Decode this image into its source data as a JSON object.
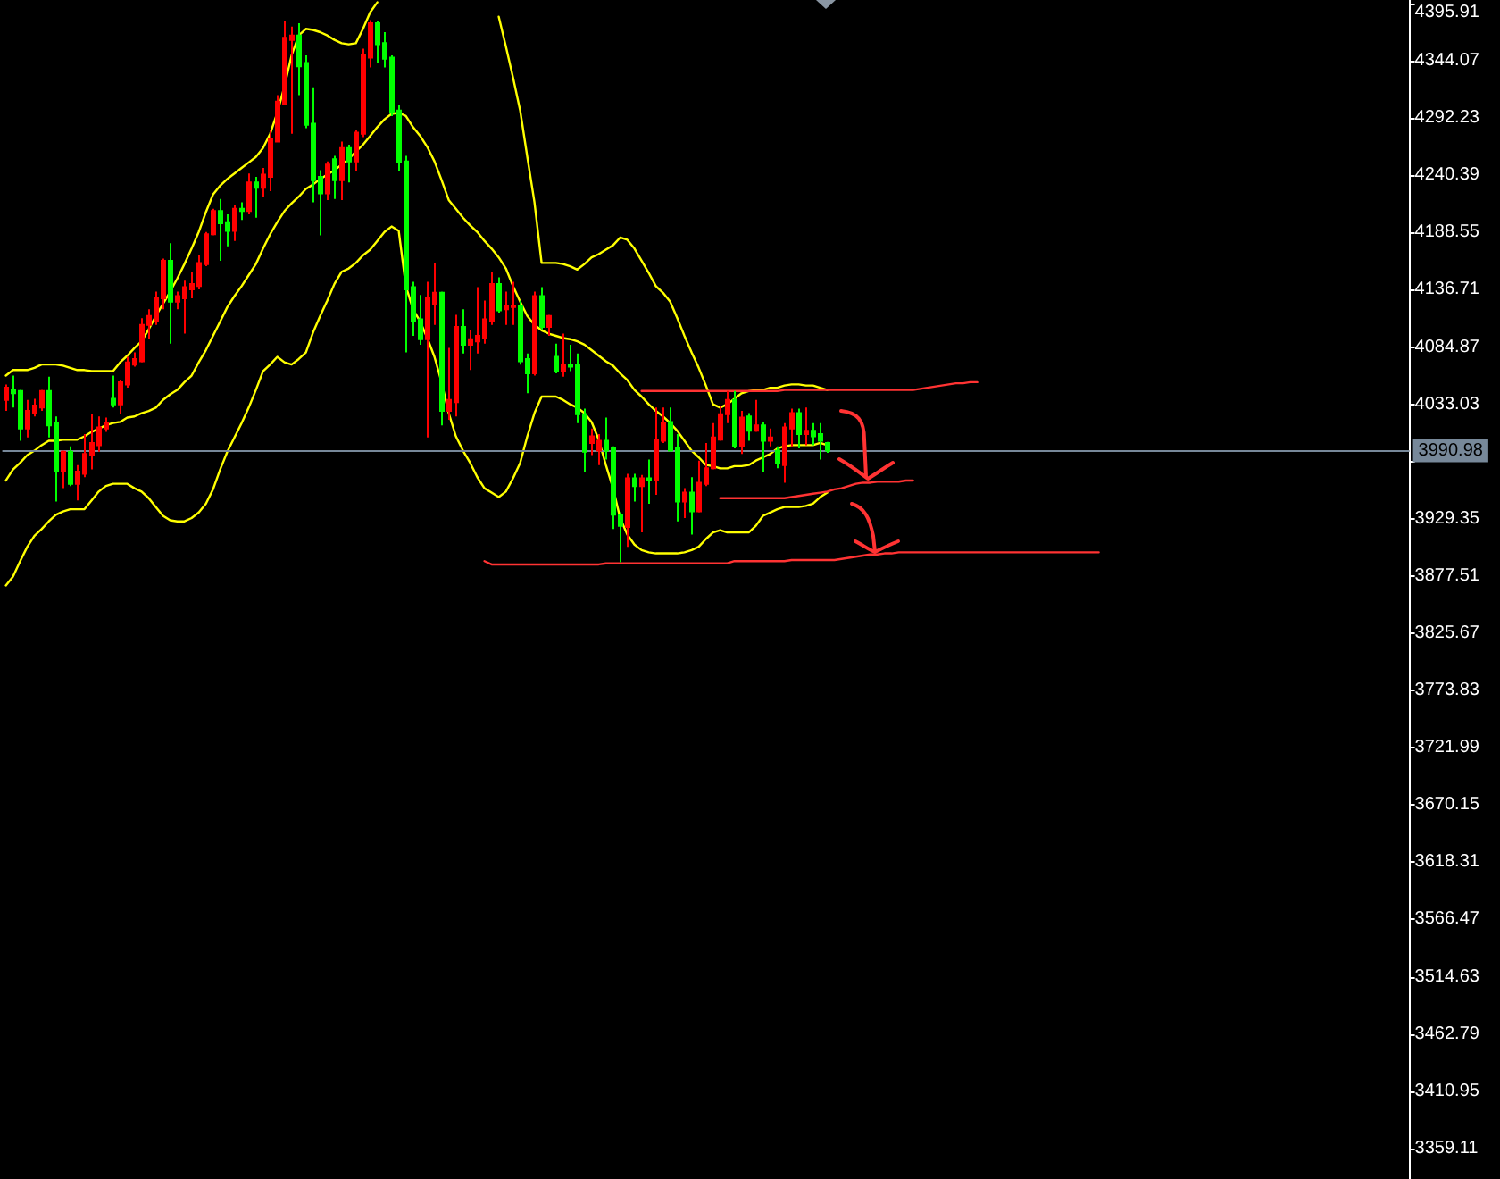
{
  "chart_data": {
    "type": "candlestick",
    "categories": [
      null,
      null,
      null,
      null,
      null,
      null,
      null,
      null,
      null,
      null,
      null,
      null,
      null,
      null,
      null,
      null,
      null,
      null,
      null,
      null,
      null,
      null,
      null,
      null,
      null,
      null,
      null,
      null,
      null,
      null,
      null,
      null,
      null,
      null,
      null,
      null,
      null,
      null,
      null,
      null,
      null,
      null,
      null,
      null,
      null,
      null,
      null,
      null,
      null,
      null,
      null,
      null,
      null,
      null,
      null,
      null,
      null,
      null,
      null,
      null,
      null,
      null,
      null,
      null,
      null,
      null,
      null,
      null,
      null,
      null,
      null,
      null,
      null,
      null,
      null,
      null,
      null,
      null,
      null,
      null,
      null,
      null,
      null,
      null,
      null,
      null,
      null,
      null,
      null,
      null,
      null,
      null,
      null,
      null,
      null,
      null,
      null,
      null,
      null,
      null,
      null,
      null,
      null,
      null,
      null,
      null,
      null,
      null,
      null,
      null,
      null,
      null,
      null,
      null,
      null,
      null,
      null,
      null,
      null,
      null,
      null,
      null,
      null,
      null,
      null,
      null,
      null,
      null,
      null,
      null,
      null,
      null,
      null,
      null,
      null,
      null,
      null,
      null,
      null,
      null,
      null,
      null,
      null,
      null,
      null,
      null,
      null,
      null,
      null,
      null,
      null,
      null,
      null,
      null,
      null,
      null,
      null,
      null,
      null,
      null,
      null,
      null,
      null,
      null,
      null,
      null,
      null,
      null,
      null,
      null,
      null,
      null,
      null,
      null,
      null,
      null,
      null,
      null,
      null,
      null,
      null,
      null,
      null,
      null,
      null,
      null,
      null,
      null,
      null,
      null,
      null,
      null,
      null,
      null,
      null,
      null,
      null
    ],
    "ohlc": [
      [
        4037,
        4051,
        4027,
        4048
      ],
      [
        4046,
        4059,
        4030,
        4043
      ],
      [
        4045,
        4046,
        4000,
        4011
      ],
      [
        4011,
        4037,
        4003,
        4027
      ],
      [
        4025,
        4038,
        4022,
        4032
      ],
      [
        4030,
        4046,
        4027,
        4045
      ],
      [
        4045,
        4058,
        4003,
        4014
      ],
      [
        4016,
        4022,
        3945,
        3972
      ],
      [
        3972,
        3991,
        3957,
        3990
      ],
      [
        3990,
        3995,
        3959,
        3961
      ],
      [
        3961,
        3978,
        3946,
        3972
      ],
      [
        3970,
        4006,
        3967,
        3988
      ],
      [
        3987,
        4024,
        3974,
        3998
      ],
      [
        3996,
        4022,
        3990,
        4012
      ],
      [
        4011,
        4021,
        4008,
        4016
      ],
      [
        4038,
        4059,
        4030,
        4033
      ],
      [
        4033,
        4055,
        4024,
        4053
      ],
      [
        4051,
        4076,
        4048,
        4071
      ],
      [
        4069,
        4080,
        4067,
        4074
      ],
      [
        4072,
        4111,
        4071,
        4105
      ],
      [
        4105,
        4119,
        4092,
        4113
      ],
      [
        4108,
        4135,
        4105,
        4129
      ],
      [
        4129,
        4165,
        4119,
        4163
      ],
      [
        4163,
        4179,
        4088,
        4126
      ],
      [
        4126,
        4135,
        4119,
        4131
      ],
      [
        4129,
        4145,
        4097,
        4139
      ],
      [
        4137,
        4153,
        4129,
        4142
      ],
      [
        4140,
        4168,
        4137,
        4161
      ],
      [
        4160,
        4189,
        4158,
        4187
      ],
      [
        4187,
        4210,
        4186,
        4208
      ],
      [
        4208,
        4219,
        4163,
        4197
      ],
      [
        4198,
        4205,
        4176,
        4190
      ],
      [
        4190,
        4213,
        4181,
        4210
      ],
      [
        4210,
        4216,
        4200,
        4208
      ],
      [
        4208,
        4242,
        4205,
        4234
      ],
      [
        4234,
        4239,
        4202,
        4229
      ],
      [
        4229,
        4247,
        4221,
        4241
      ],
      [
        4239,
        4281,
        4226,
        4273
      ],
      [
        4271,
        4313,
        4270,
        4307
      ],
      [
        4305,
        4380,
        4304,
        4365
      ],
      [
        4363,
        4375,
        4278,
        4367
      ],
      [
        4367,
        4378,
        4313,
        4339
      ],
      [
        4342,
        4349,
        4283,
        4286
      ],
      [
        4287,
        4320,
        4216,
        4236
      ],
      [
        4239,
        4245,
        4186,
        4224
      ],
      [
        4224,
        4253,
        4218,
        4250
      ],
      [
        4255,
        4258,
        4219,
        4236
      ],
      [
        4236,
        4271,
        4218,
        4265
      ],
      [
        4265,
        4268,
        4234,
        4253
      ],
      [
        4253,
        4281,
        4244,
        4279
      ],
      [
        4278,
        4355,
        4275,
        4349
      ],
      [
        4347,
        4381,
        4338,
        4378
      ],
      [
        4378,
        4380,
        4342,
        4359
      ],
      [
        4360,
        4370,
        4338,
        4346
      ],
      [
        4347,
        4349,
        4294,
        4297
      ],
      [
        4299,
        4304,
        4244,
        4252
      ],
      [
        4253,
        4258,
        4080,
        4137
      ],
      [
        4139,
        4144,
        4095,
        4108
      ],
      [
        4110,
        4132,
        4087,
        4092
      ],
      [
        4092,
        4144,
        4003,
        4129
      ],
      [
        4124,
        4161,
        4105,
        4134
      ],
      [
        4134,
        4135,
        4014,
        4027
      ],
      [
        4027,
        4084,
        4019,
        4037
      ],
      [
        4035,
        4114,
        4022,
        4103
      ],
      [
        4103,
        4119,
        4079,
        4087
      ],
      [
        4087,
        4100,
        4064,
        4092
      ],
      [
        4090,
        4139,
        4079,
        4095
      ],
      [
        4093,
        4127,
        4088,
        4110
      ],
      [
        4108,
        4153,
        4105,
        4142
      ],
      [
        4142,
        4148,
        4116,
        4118
      ],
      [
        4119,
        4135,
        4105,
        4122
      ],
      [
        4121,
        4144,
        4105,
        4122
      ],
      [
        4122,
        4127,
        4069,
        4072
      ],
      [
        4074,
        4079,
        4043,
        4061
      ],
      [
        4061,
        4135,
        4059,
        4131
      ],
      [
        4131,
        4139,
        4100,
        4103
      ],
      [
        4103,
        4114,
        4095,
        4113
      ],
      [
        4076,
        4088,
        4061,
        4063
      ],
      [
        4063,
        4097,
        4058,
        4069
      ],
      [
        4069,
        4087,
        4063,
        4067
      ],
      [
        4069,
        4079,
        4016,
        4024
      ],
      [
        4024,
        4029,
        3972,
        3990
      ],
      [
        3998,
        4011,
        3987,
        4004
      ],
      [
        3991,
        4006,
        3978,
        4000
      ],
      [
        4000,
        4021,
        3983,
        3991
      ],
      [
        3993,
        3995,
        3920,
        3933
      ],
      [
        3933,
        3935,
        3890,
        3923
      ],
      [
        3922,
        3970,
        3904,
        3966
      ],
      [
        3966,
        3970,
        3945,
        3959
      ],
      [
        3959,
        3969,
        3917,
        3966
      ],
      [
        3966,
        3983,
        3943,
        3964
      ],
      [
        3964,
        4030,
        3951,
        4001
      ],
      [
        4000,
        4030,
        3998,
        4016
      ],
      [
        4017,
        4030,
        3990,
        3991
      ],
      [
        3993,
        4006,
        3927,
        3945
      ],
      [
        3945,
        3957,
        3930,
        3953
      ],
      [
        3953,
        3967,
        3915,
        3936
      ],
      [
        3936,
        3982,
        3935,
        3962
      ],
      [
        3961,
        3998,
        3959,
        3975
      ],
      [
        3975,
        4016,
        3974,
        4003
      ],
      [
        4001,
        4032,
        4000,
        4024
      ],
      [
        4024,
        4045,
        4016,
        4037
      ],
      [
        4037,
        4045,
        3993,
        3995
      ],
      [
        3995,
        4027,
        3988,
        4021
      ],
      [
        4022,
        4025,
        4000,
        4009
      ],
      [
        4009,
        4037,
        4008,
        4014
      ],
      [
        4014,
        4017,
        3972,
        4000
      ],
      [
        4000,
        4011,
        3995,
        4003
      ],
      [
        3991,
        3995,
        3975,
        3980
      ],
      [
        3978,
        4016,
        3962,
        4012
      ],
      [
        4011,
        4029,
        3995,
        4025
      ],
      [
        4025,
        4029,
        3993,
        4006
      ],
      [
        4006,
        4030,
        3996,
        4009
      ],
      [
        4009,
        4016,
        3996,
        4004
      ],
      [
        4006,
        4016,
        3983,
        4000
      ],
      [
        3998,
        3999,
        3989,
        3990.98
      ],
      null,
      null,
      null,
      null,
      null,
      null,
      null,
      null,
      null,
      null,
      null,
      null,
      null,
      null,
      null,
      null,
      null,
      null,
      null,
      null,
      null,
      null,
      null,
      null,
      null,
      null,
      null,
      null,
      null,
      null,
      null,
      null,
      null,
      null,
      null,
      null,
      null,
      null,
      null,
      null,
      null,
      null,
      null,
      null,
      null,
      null,
      null,
      null,
      null,
      null,
      null,
      null,
      null,
      null,
      null,
      null,
      null,
      null,
      null,
      null,
      null,
      null,
      null,
      null,
      null,
      null,
      null,
      null,
      null,
      null,
      null,
      null,
      null,
      null,
      null,
      null,
      null,
      null,
      null,
      null,
      null
    ],
    "colors": [
      "#ff0000",
      "#00ff00",
      "#00ff00",
      "#ff0000",
      "#ff0000",
      "#ff0000",
      "#00ff00",
      "#00ff00",
      "#ff0000",
      "#00ff00",
      "#ff0000",
      "#ff0000",
      "#ff0000",
      "#ff0000",
      "#ff0000",
      "#00ff00",
      "#ff0000",
      "#ff0000",
      "#ff0000",
      "#ff0000",
      "#ff0000",
      "#ff0000",
      "#ff0000",
      "#00ff00",
      "#ff0000",
      "#ff0000",
      "#ff0000",
      "#ff0000",
      "#ff0000",
      "#ff0000",
      "#00ff00",
      "#00ff00",
      "#ff0000",
      "#00ff00",
      "#ff0000",
      "#00ff00",
      "#ff0000",
      "#ff0000",
      "#ff0000",
      "#ff0000",
      "#ff0000",
      "#00ff00",
      "#00ff00",
      "#00ff00",
      "#00ff00",
      "#ff0000",
      "#00ff00",
      "#ff0000",
      "#00ff00",
      "#ff0000",
      "#ff0000",
      "#ff0000",
      "#00ff00",
      "#00ff00",
      "#00ff00",
      "#00ff00",
      "#00ff00",
      "#00ff00",
      "#00ff00",
      "#ff0000",
      "#ff0000",
      "#00ff00",
      "#ff0000",
      "#ff0000",
      "#00ff00",
      "#ff0000",
      "#ff0000",
      "#ff0000",
      "#ff0000",
      "#00ff00",
      "#ff0000",
      "#ff0000",
      "#00ff00",
      "#00ff00",
      "#ff0000",
      "#00ff00",
      "#ff0000",
      "#00ff00",
      "#ff0000",
      "#00ff00",
      "#00ff00",
      "#00ff00",
      "#ff0000",
      "#ff0000",
      "#00ff00",
      "#00ff00",
      "#00ff00",
      "#ff0000",
      "#00ff00",
      "#ff0000",
      "#00ff00",
      "#ff0000",
      "#ff0000",
      "#00ff00",
      "#00ff00",
      "#ff0000",
      "#00ff00",
      "#ff0000",
      "#ff0000",
      "#ff0000",
      "#ff0000",
      "#ff0000",
      "#00ff00",
      "#ff0000",
      "#00ff00",
      "#ff0000",
      "#00ff00",
      "#ff0000",
      "#00ff00",
      "#ff0000",
      "#ff0000",
      "#00ff00",
      "#ff0000",
      "#00ff00",
      "#00ff00",
      "#00ff00",
      null,
      null,
      null,
      null,
      null,
      null,
      null,
      null,
      null,
      null,
      null,
      null,
      null,
      null,
      null,
      null,
      null,
      null,
      null,
      null,
      null,
      null,
      null,
      null,
      null,
      null,
      null,
      null,
      null,
      null,
      null,
      null,
      null,
      null,
      null,
      null,
      null,
      null,
      null,
      null,
      null,
      null,
      null,
      null,
      null,
      null,
      null,
      null,
      null,
      null,
      null,
      null,
      null,
      null,
      null,
      null,
      null,
      null,
      null,
      null,
      null,
      null,
      null,
      null,
      null,
      null,
      null,
      null,
      null,
      null,
      null,
      null,
      null,
      null,
      null,
      null,
      null,
      null,
      null,
      null,
      null
    ],
    "series": [
      {
        "type": "line",
        "color": "#ffff00",
        "values": [
          4059,
          4064,
          4064,
          4064,
          4066,
          4069,
          4069,
          4069,
          4068,
          4066,
          4064,
          4064,
          4063,
          4063,
          4063,
          4063,
          4071,
          4077,
          4084,
          4090,
          4101,
          4113,
          4124,
          4135,
          4147,
          4160,
          4174,
          4189,
          4207,
          4223,
          4231,
          4237,
          4242,
          4247,
          4252,
          4257,
          4265,
          4278,
          4297,
          4321,
          4349,
          4367,
          4373,
          4372,
          4370,
          4367,
          4363,
          4360,
          4359,
          4360,
          4373,
          4388,
          4397,
          null,
          null,
          null,
          null,
          null,
          null,
          null,
          null,
          null,
          null,
          null,
          null,
          null,
          null,
          null,
          null,
          4384,
          4357,
          4329,
          4299,
          4257,
          4216,
          4161,
          4161,
          4161,
          4160,
          4158,
          4155,
          4160,
          4166,
          4169,
          4173,
          4177,
          4184,
          4182,
          4174,
          4163,
          4152,
          4140,
          4134,
          4126,
          4111,
          4095,
          4080,
          4066,
          4050,
          4033,
          4030,
          4033,
          4038,
          4043,
          4045,
          4046,
          4046,
          4048,
          4048,
          4050,
          4051,
          4051,
          4050,
          4050,
          4048,
          4046,
          null,
          null,
          null,
          null,
          null,
          null,
          null,
          null,
          null,
          null,
          null,
          null,
          null,
          null,
          null,
          null,
          null,
          null,
          null,
          null,
          null,
          null,
          null,
          null,
          null,
          null,
          null,
          null,
          null,
          null,
          null,
          null,
          null,
          null,
          null,
          null,
          null,
          null,
          null,
          null,
          null,
          null,
          null,
          null,
          null,
          null,
          null,
          null,
          null,
          null,
          null,
          null,
          null,
          null,
          null,
          null,
          null,
          null,
          null,
          null,
          null,
          null,
          null,
          null,
          null,
          null,
          null,
          null,
          null,
          null,
          null,
          null,
          null,
          null,
          null,
          null,
          null,
          null,
          null,
          null,
          null
        ]
      },
      {
        "type": "line",
        "color": "#ffff00",
        "values": [
          3964,
          3974,
          3980,
          3987,
          3991,
          3996,
          4000,
          4000,
          4001,
          4001,
          4001,
          4004,
          4008,
          4011,
          4014,
          4016,
          4017,
          4021,
          4022,
          4025,
          4027,
          4030,
          4037,
          4042,
          4046,
          4053,
          4059,
          4071,
          4082,
          4095,
          4108,
          4121,
          4131,
          4140,
          4150,
          4160,
          4174,
          4187,
          4198,
          4208,
          4215,
          4221,
          4228,
          4232,
          4237,
          4241,
          4245,
          4250,
          4255,
          4262,
          4268,
          4276,
          4284,
          4291,
          4296,
          4297,
          4294,
          4284,
          4276,
          4266,
          4253,
          4236,
          4218,
          4210,
          4202,
          4195,
          4189,
          4181,
          4174,
          4166,
          4156,
          4140,
          4126,
          4113,
          4105,
          4100,
          4097,
          4095,
          4093,
          4092,
          4090,
          4087,
          4082,
          4077,
          4072,
          4068,
          4061,
          4055,
          4046,
          4040,
          4033,
          4027,
          4022,
          4016,
          4009,
          4000,
          3991,
          3985,
          3978,
          3977,
          3975,
          3975,
          3977,
          3977,
          3978,
          3982,
          3985,
          3988,
          3993,
          3995,
          3996,
          3996,
          3996,
          3996,
          3998,
          3996,
          null,
          null,
          null,
          null,
          null,
          null,
          null,
          null,
          null,
          null,
          null,
          null,
          null,
          null,
          null,
          null,
          null,
          null,
          null,
          null,
          null,
          null,
          null,
          null,
          null,
          null,
          null,
          null,
          null,
          null,
          null,
          null,
          null,
          null,
          null,
          null,
          null,
          null,
          null,
          null,
          null,
          null,
          null,
          null,
          null,
          null,
          null,
          null,
          null,
          null,
          null,
          null,
          null,
          null,
          null,
          null,
          null,
          null,
          null,
          null,
          null,
          null,
          null,
          null,
          null,
          null,
          null,
          null,
          null,
          null,
          null,
          null,
          null,
          null,
          null,
          null,
          null,
          null,
          null,
          null,
          null
        ]
      },
      {
        "type": "line",
        "color": "#ffff00",
        "values": [
          3869,
          3877,
          3891,
          3904,
          3914,
          3920,
          3927,
          3933,
          3936,
          3938,
          3938,
          3938,
          3946,
          3954,
          3959,
          3961,
          3961,
          3961,
          3957,
          3954,
          3948,
          3940,
          3932,
          3928,
          3927,
          3927,
          3930,
          3935,
          3943,
          3956,
          3974,
          3990,
          4003,
          4016,
          4030,
          4046,
          4063,
          4069,
          4076,
          4071,
          4069,
          4074,
          4080,
          4098,
          4113,
          4127,
          4142,
          4153,
          4156,
          4161,
          4168,
          4173,
          4181,
          4189,
          4194,
          4190,
          4140,
          4119,
          4108,
          4093,
          4076,
          4053,
          4025,
          4004,
          3991,
          3980,
          3967,
          3957,
          3953,
          3949,
          3954,
          3966,
          3980,
          4004,
          4025,
          4040,
          4040,
          4040,
          4037,
          4033,
          4030,
          4025,
          4017,
          4001,
          3978,
          3957,
          3930,
          3915,
          3906,
          3901,
          3899,
          3898,
          3898,
          3898,
          3898,
          3899,
          3901,
          3904,
          3911,
          3917,
          3919,
          3917,
          3917,
          3917,
          3917,
          3923,
          3932,
          3935,
          3938,
          3940,
          3940,
          3940,
          3941,
          3943,
          3949,
          3953,
          null,
          null,
          null,
          null,
          null,
          null,
          null,
          null,
          null,
          null,
          null,
          null,
          null,
          null,
          null,
          null,
          null,
          null,
          null,
          null,
          null,
          null,
          null,
          null,
          null,
          null,
          null,
          null,
          null,
          null,
          null,
          null,
          null,
          null,
          null,
          null,
          null,
          null,
          null,
          null,
          null,
          null,
          null,
          null,
          null,
          null,
          null,
          null,
          null,
          null,
          null,
          null,
          null,
          null,
          null,
          null,
          null,
          null,
          null,
          null,
          null,
          null,
          null,
          null,
          null,
          null,
          null,
          null,
          null,
          null,
          null,
          null,
          null,
          null,
          null,
          null,
          null,
          null,
          null,
          null,
          null
        ]
      },
      {
        "type": "line",
        "color": "#ff3333",
        "values": [
          null,
          null,
          null,
          null,
          null,
          null,
          null,
          null,
          null,
          null,
          null,
          null,
          null,
          null,
          null,
          null,
          null,
          null,
          null,
          null,
          null,
          null,
          null,
          null,
          null,
          null,
          null,
          null,
          null,
          null,
          null,
          null,
          null,
          null,
          null,
          null,
          null,
          null,
          null,
          null,
          null,
          null,
          null,
          null,
          null,
          null,
          null,
          null,
          null,
          null,
          null,
          null,
          null,
          null,
          null,
          null,
          null,
          null,
          null,
          null,
          null,
          null,
          null,
          null,
          null,
          null,
          null,
          null,
          null,
          null,
          null,
          null,
          null,
          null,
          null,
          null,
          null,
          null,
          null,
          null,
          null,
          null,
          null,
          null,
          null,
          null,
          null,
          null,
          null,
          4045,
          4045,
          4045,
          4045,
          4045,
          4045,
          4045,
          4045,
          4045,
          4045,
          4045,
          4045,
          4045,
          4045,
          4045,
          4045,
          4045,
          4045,
          4045,
          4045,
          4046,
          4046,
          4046,
          4046,
          4046,
          4046,
          4046,
          4046,
          4046,
          4046,
          4046,
          4046,
          4046,
          4046,
          4046,
          4046,
          4046,
          4046,
          4046,
          4047,
          4048,
          4049,
          4050,
          4051,
          4052,
          4052,
          4053,
          4053,
          null,
          null,
          null,
          null,
          null,
          null,
          null,
          null,
          null,
          null,
          null,
          null,
          null,
          null,
          null,
          null,
          null,
          null,
          null,
          null,
          null,
          null,
          null,
          null,
          null,
          null,
          null,
          null,
          null,
          null,
          null,
          null,
          null,
          null,
          null,
          null,
          null,
          null,
          null,
          null,
          null,
          null,
          null,
          null,
          null,
          null,
          null,
          null,
          null,
          null,
          null,
          null,
          null,
          null,
          null,
          null,
          null,
          null,
          null,
          null
        ]
      },
      {
        "type": "line",
        "color": "#ff3333",
        "values": [
          null,
          null,
          null,
          null,
          null,
          null,
          null,
          null,
          null,
          null,
          null,
          null,
          null,
          null,
          null,
          null,
          null,
          null,
          null,
          null,
          null,
          null,
          null,
          null,
          null,
          null,
          null,
          null,
          null,
          null,
          null,
          null,
          null,
          null,
          null,
          null,
          null,
          null,
          null,
          null,
          null,
          null,
          null,
          null,
          null,
          null,
          null,
          null,
          null,
          null,
          null,
          null,
          null,
          null,
          null,
          null,
          null,
          null,
          null,
          null,
          null,
          null,
          null,
          null,
          null,
          null,
          null,
          null,
          null,
          null,
          null,
          null,
          null,
          null,
          null,
          null,
          null,
          null,
          null,
          null,
          null,
          null,
          null,
          null,
          null,
          null,
          null,
          null,
          null,
          null,
          null,
          null,
          null,
          null,
          null,
          null,
          null,
          null,
          null,
          null,
          3948,
          3948,
          3948,
          3948,
          3948,
          3948,
          3948,
          3948,
          3948,
          3948,
          3949,
          3950,
          3951,
          3952,
          3953,
          3954,
          3956,
          3957,
          3959,
          3961,
          3962,
          3962,
          3963,
          3963,
          3963,
          3963,
          3964,
          3964,
          null,
          null,
          null,
          null,
          null,
          null,
          null,
          null,
          null,
          null,
          null,
          null,
          null,
          null,
          null,
          null,
          null,
          null,
          null,
          null,
          null,
          null,
          null,
          null,
          null,
          null,
          null,
          null,
          null,
          null,
          null,
          null,
          null,
          null,
          null,
          null,
          null,
          null,
          null,
          null,
          null,
          null,
          null,
          null,
          null,
          null,
          null,
          null,
          null,
          null,
          null,
          null,
          null,
          null,
          null,
          null,
          null,
          null,
          null,
          null,
          null,
          null,
          null,
          null,
          null,
          null,
          null,
          null,
          null
        ]
      },
      {
        "type": "line",
        "color": "#ff3333",
        "values": [
          null,
          null,
          null,
          null,
          null,
          null,
          null,
          null,
          null,
          null,
          null,
          null,
          null,
          null,
          null,
          null,
          null,
          null,
          null,
          null,
          null,
          null,
          null,
          null,
          null,
          null,
          null,
          null,
          null,
          null,
          null,
          null,
          null,
          null,
          null,
          null,
          null,
          null,
          null,
          null,
          null,
          null,
          null,
          null,
          null,
          null,
          null,
          null,
          null,
          null,
          null,
          null,
          null,
          null,
          null,
          null,
          null,
          null,
          null,
          null,
          null,
          null,
          null,
          null,
          null,
          null,
          null,
          3891,
          3888,
          3888,
          3888,
          3888,
          3888,
          3888,
          3888,
          3888,
          3888,
          3888,
          3888,
          3888,
          3888,
          3888,
          3888,
          3888,
          3889,
          3889,
          3889,
          3889,
          3889,
          3889,
          3889,
          3889,
          3889,
          3889,
          3889,
          3889,
          3889,
          3889,
          3889,
          3889,
          3889,
          3889,
          3891,
          3891,
          3891,
          3891,
          3891,
          3891,
          3891,
          3891,
          3892,
          3892,
          3892,
          3892,
          3892,
          3892,
          3892,
          3893,
          3894,
          3895,
          3896,
          3897,
          3897,
          3898,
          3898,
          3899,
          3899,
          3899,
          3899,
          3899,
          3899,
          3899,
          3899,
          3899,
          3899,
          3899,
          3899,
          3899,
          3899,
          3899,
          3899,
          3899,
          3899,
          3899,
          3899,
          3899,
          3899,
          3899,
          3899,
          3899,
          3899,
          3899,
          3899,
          3899,
          null,
          null,
          null,
          null,
          null,
          null,
          null,
          null,
          null,
          null,
          null,
          null,
          null,
          null,
          null,
          null,
          null,
          null,
          null,
          null,
          null,
          null,
          null,
          null,
          null,
          null,
          null,
          null,
          null,
          null,
          null,
          null,
          null,
          null,
          null,
          null,
          null,
          null,
          null,
          null,
          null,
          null,
          null
        ]
      }
    ],
    "ylim": [
      3331.5,
      4399.1
    ],
    "yticks": [
      3359.11,
      3410.95,
      3462.79,
      3514.63,
      3566.47,
      3618.31,
      3670.15,
      3721.99,
      3773.83,
      3825.67,
      3877.51,
      3929.35,
      {
        "value": 3981.19,
        "label": null
      },
      4033.03,
      4084.87,
      4136.71,
      4188.55,
      4240.39,
      4292.23,
      4344.07,
      4395.91
    ],
    "ref_lines": [
      {
        "axis": "y",
        "value": 3990.98,
        "label": "3990.98",
        "color": "#778899"
      }
    ],
    "tick_labels": "y"
  }
}
